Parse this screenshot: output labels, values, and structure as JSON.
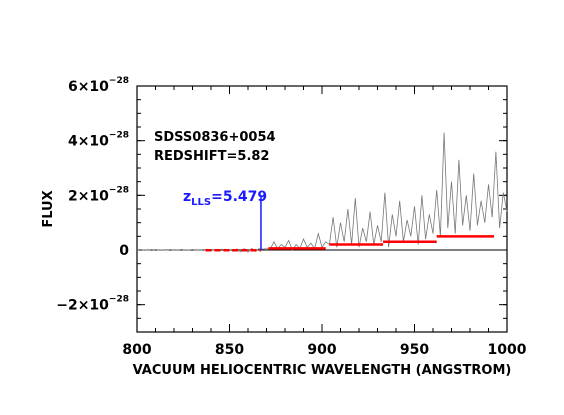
{
  "chart_data": {
    "type": "line",
    "xlabel": "VACUUM HELIOCENTRIC WAVELENGTH (ANGSTROM)",
    "ylabel": "FLUX",
    "xlim": [
      800,
      1000
    ],
    "ylim": [
      -3e-28,
      6e-28
    ],
    "x_ticks": [
      800,
      850,
      900,
      950,
      1000
    ],
    "x_tick_labels": [
      "800",
      "850",
      "900",
      "950",
      "1000"
    ],
    "y_ticks": [
      -2e-28,
      0,
      2e-28,
      4e-28,
      6e-28
    ],
    "y_tick_labels": [
      {
        "mantissa": "−2×10",
        "exp": "−28"
      },
      {
        "mantissa": "0",
        "exp": ""
      },
      {
        "mantissa": "2×10",
        "exp": "−28"
      },
      {
        "mantissa": "4×10",
        "exp": "−28"
      },
      {
        "mantissa": "6×10",
        "exp": "−28"
      }
    ],
    "annotation_name": "SDSS0836+0054",
    "annotation_redshift": "REDSHIFT=5.82",
    "lls_label_main": "z",
    "lls_label_sub": "LLS",
    "lls_label_value": "=5.479",
    "lls_marker": {
      "x": 867,
      "y_top": 2e-28,
      "y_bottom": 0
    },
    "zero_line": 0,
    "spectrum": {
      "color": "#777777",
      "x": [
        800,
        802,
        804,
        806,
        808,
        810,
        812,
        814,
        816,
        818,
        820,
        822,
        824,
        826,
        828,
        830,
        832,
        834,
        836,
        838,
        840,
        842,
        844,
        846,
        848,
        850,
        852,
        854,
        856,
        858,
        860,
        862,
        864,
        866,
        868,
        870,
        872,
        874,
        876,
        878,
        880,
        882,
        884,
        886,
        888,
        890,
        892,
        894,
        896,
        898,
        900,
        902,
        904,
        906,
        908,
        910,
        912,
        914,
        916,
        918,
        920,
        922,
        924,
        926,
        928,
        930,
        932,
        934,
        936,
        938,
        940,
        942,
        944,
        946,
        948,
        950,
        952,
        954,
        956,
        958,
        960,
        962,
        964,
        966,
        968,
        970,
        972,
        974,
        976,
        978,
        980,
        982,
        984,
        986,
        988,
        990,
        992,
        994,
        996,
        998,
        1000
      ],
      "y": [
        0,
        -2e-30,
        1e-30,
        -1e-30,
        2e-30,
        -2e-30,
        1e-30,
        0,
        -1e-30,
        2e-30,
        -1e-30,
        1e-30,
        -2e-30,
        1e-30,
        0,
        2e-30,
        -1e-30,
        1e-30,
        -2e-30,
        3e-30,
        -3e-30,
        2e-30,
        -2e-30,
        3e-30,
        -4e-30,
        2e-30,
        -5e-30,
        4e-30,
        -6e-30,
        5e-30,
        -8e-30,
        6e-30,
        -5e-30,
        5e-30,
        3e-30,
        5e-30,
        2e-30,
        3e-29,
        5e-30,
        2e-29,
        1e-29,
        3.5e-29,
        0.0,
        2e-29,
        5e-30,
        4e-29,
        1e-29,
        2.5e-29,
        5e-30,
        6e-29,
        1e-29,
        3e-29,
        2e-29,
        1.2e-28,
        1e-29,
        1e-28,
        3e-29,
        1.5e-28,
        2e-29,
        1.9e-28,
        1e-29,
        8e-29,
        3e-29,
        1.4e-28,
        2e-29,
        9e-29,
        3e-29,
        2.1e-28,
        1e-29,
        1.3e-28,
        5e-29,
        1.8e-28,
        3e-29,
        1.1e-28,
        5e-29,
        1.6e-28,
        2e-29,
        2e-28,
        4e-29,
        1.3e-28,
        6e-29,
        2.2e-28,
        5e-29,
        4.3e-28,
        8e-29,
        2.5e-28,
        6e-29,
        3.3e-28,
        9e-29,
        2e-28,
        7e-29,
        2.8e-28,
        9e-29,
        1.8e-28,
        1e-28,
        2.4e-28,
        1.2e-28,
        3.6e-28,
        8e-29,
        2.1e-28,
        1.4e-28
      ]
    },
    "series": [
      {
        "x": [
          837,
          867
        ],
        "y": [
          -1e-30,
          -1e-30
        ],
        "color": "#ff0000",
        "style": "dashed"
      },
      {
        "x": [
          871,
          902
        ],
        "y": [
          6e-30,
          6e-30
        ],
        "color": "#ff0000",
        "style": "solid"
      },
      {
        "x": [
          904,
          933
        ],
        "y": [
          2e-29,
          2e-29
        ],
        "color": "#ff0000",
        "style": "solid"
      },
      {
        "x": [
          933,
          962
        ],
        "y": [
          3e-29,
          3e-29
        ],
        "color": "#ff0000",
        "style": "solid"
      },
      {
        "x": [
          962,
          993
        ],
        "y": [
          5e-29,
          5e-29
        ],
        "color": "#ff0000",
        "style": "solid"
      }
    ],
    "grid": false,
    "colors": {
      "axis": "#000000",
      "lls": "#1a1aff",
      "steps": "#ff0000",
      "spectrum": "#777777"
    }
  }
}
